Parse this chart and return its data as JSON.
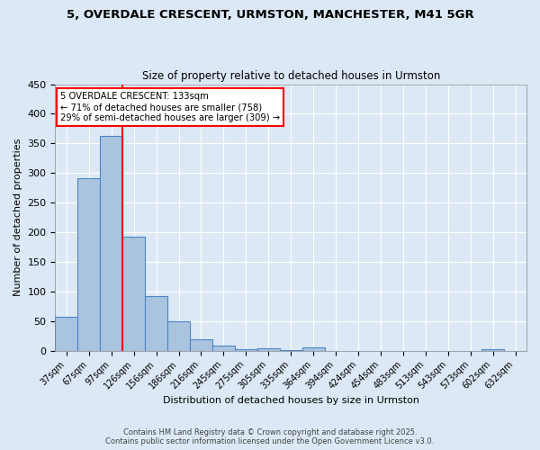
{
  "title_line1": "5, OVERDALE CRESCENT, URMSTON, MANCHESTER, M41 5GR",
  "title_line2": "Size of property relative to detached houses in Urmston",
  "xlabel": "Distribution of detached houses by size in Urmston",
  "ylabel": "Number of detached properties",
  "bar_labels": [
    "37sqm",
    "67sqm",
    "97sqm",
    "126sqm",
    "156sqm",
    "186sqm",
    "216sqm",
    "245sqm",
    "275sqm",
    "305sqm",
    "335sqm",
    "364sqm",
    "394sqm",
    "424sqm",
    "454sqm",
    "483sqm",
    "513sqm",
    "543sqm",
    "573sqm",
    "602sqm",
    "632sqm"
  ],
  "bar_values": [
    57,
    291,
    362,
    193,
    92,
    49,
    20,
    8,
    3,
    4,
    1,
    5,
    0,
    0,
    0,
    0,
    0,
    0,
    0,
    3,
    0
  ],
  "bar_color": "#aac4e0",
  "bar_edge_color": "#4a86c8",
  "red_line_index": 3,
  "annotation_text": "5 OVERDALE CRESCENT: 133sqm\n← 71% of detached houses are smaller (758)\n29% of semi-detached houses are larger (309) →",
  "annotation_box_color": "white",
  "annotation_box_edge": "red",
  "ylim": [
    0,
    450
  ],
  "yticks": [
    0,
    50,
    100,
    150,
    200,
    250,
    300,
    350,
    400,
    450
  ],
  "footer_line1": "Contains HM Land Registry data © Crown copyright and database right 2025.",
  "footer_line2": "Contains public sector information licensed under the Open Government Licence v3.0.",
  "background_color": "#dce8f5",
  "grid_color": "#ffffff"
}
